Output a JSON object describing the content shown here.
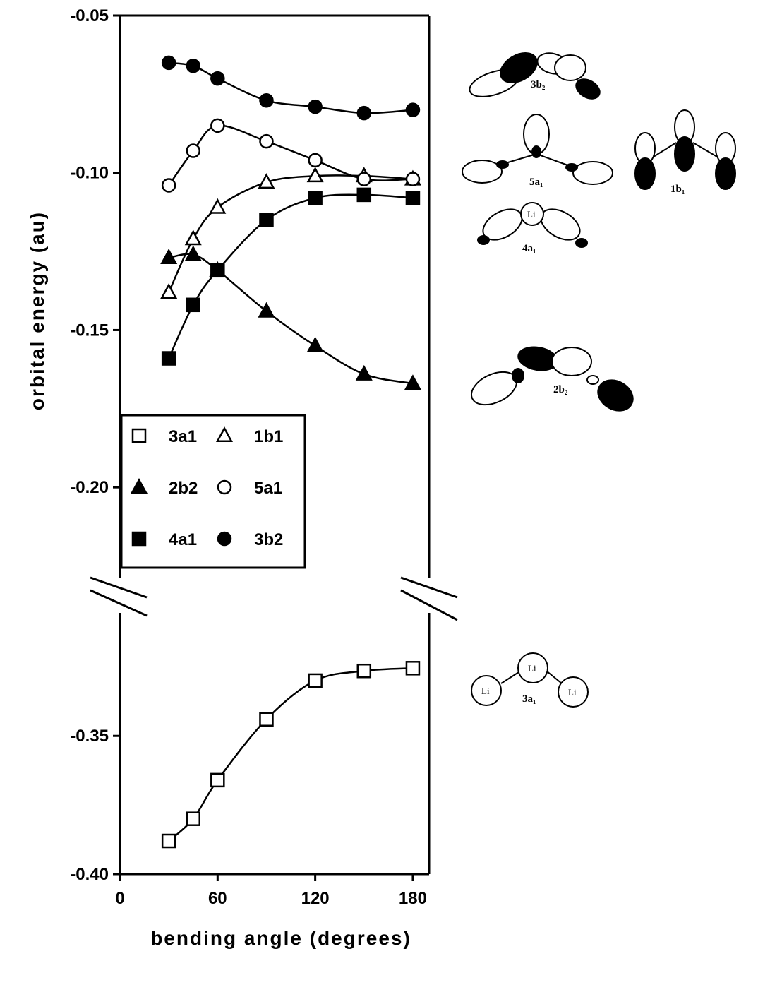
{
  "chart_data": {
    "type": "line",
    "xlabel": "bending angle (degrees)",
    "ylabel": "orbital energy (au)",
    "xlim": [
      0,
      190
    ],
    "ylim_upper": [
      -0.2287,
      -0.05
    ],
    "ylim_lower": [
      -0.4,
      -0.3055
    ],
    "axis_break": "between -0.2287 and -0.3055",
    "x_ticks": [
      "0",
      "60",
      "120",
      "180"
    ],
    "y_ticks_upper": [
      "-0.05",
      "-0.10",
      "-0.15",
      "-0.20"
    ],
    "y_ticks_lower": [
      "-0.35",
      "-0.40"
    ],
    "grid": false,
    "legend_position": "lower-left of upper panel",
    "x": [
      30,
      45,
      60,
      90,
      120,
      150,
      180
    ],
    "series": [
      {
        "name": "3a1",
        "marker": "open-square",
        "values": [
          -0.388,
          -0.38,
          -0.366,
          -0.344,
          -0.33,
          -0.3265,
          -0.3255
        ]
      },
      {
        "name": "1b1",
        "marker": "open-triangle",
        "values": [
          -0.138,
          -0.121,
          -0.111,
          -0.103,
          -0.101,
          -0.101,
          -0.102
        ]
      },
      {
        "name": "2b2",
        "marker": "filled-triangle",
        "values": [
          -0.127,
          -0.126,
          -0.131,
          -0.144,
          -0.155,
          -0.164,
          -0.167
        ]
      },
      {
        "name": "5a1",
        "marker": "open-circle",
        "values": [
          -0.104,
          -0.093,
          -0.085,
          -0.09,
          -0.096,
          -0.102,
          -0.102
        ]
      },
      {
        "name": "4a1",
        "marker": "filled-square",
        "values": [
          -0.159,
          -0.142,
          -0.131,
          -0.115,
          -0.108,
          -0.107,
          -0.108
        ]
      },
      {
        "name": "3b2",
        "marker": "filled-circle",
        "values": [
          -0.065,
          -0.066,
          -0.07,
          -0.077,
          -0.079,
          -0.081,
          -0.08
        ]
      }
    ]
  },
  "orbital_labels": {
    "o3b2": "3b₂",
    "o5a1": "5a₁",
    "o1b1": "1b₁",
    "o4a1": "4a₁",
    "o2b2": "2b₂",
    "o3a1": "3a₁"
  },
  "atom_label": "Li"
}
